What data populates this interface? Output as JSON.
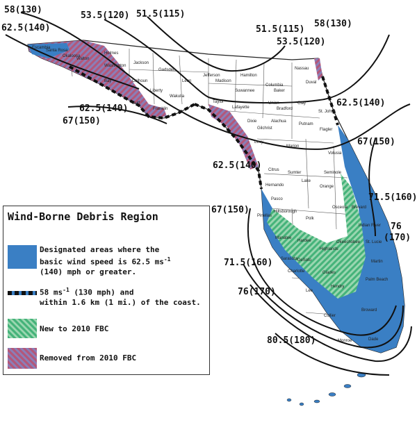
{
  "legend": {
    "title": "Wind-Borne Debris Region",
    "items": [
      {
        "line1": "Designated areas where the",
        "line2a": "basic wind speed is",
        "line2b": "62.5 ms",
        "line2sup": "-1",
        "line3": "(140) mph or greater."
      },
      {
        "line1a": "58 ms",
        "line1sup": "-1",
        "line1b": "(130 mph) and",
        "line2": "within 1.6 km (1 mi.) of the coast."
      },
      {
        "text": "New to 2010 FBC"
      },
      {
        "text": "Removed from 2010 FBC"
      }
    ]
  },
  "contours": [
    {
      "id": "c58-top",
      "label": "58(130)"
    },
    {
      "id": "c535-top",
      "label": "53.5(120)"
    },
    {
      "id": "c515-top",
      "label": "51.5(115)"
    },
    {
      "id": "c625-nw",
      "label": "62.5(140)"
    },
    {
      "id": "c515-ne",
      "label": "51.5(115)"
    },
    {
      "id": "c58-ne",
      "label": "58(130)"
    },
    {
      "id": "c535-ne",
      "label": "53.5(120)"
    },
    {
      "id": "c625-pan",
      "label": "62.5(140)"
    },
    {
      "id": "c67-pan",
      "label": "67(150)"
    },
    {
      "id": "c625-e",
      "label": "62.5(140)"
    },
    {
      "id": "c67-e",
      "label": "67(150)"
    },
    {
      "id": "c625-w",
      "label": "62.5(140)"
    },
    {
      "id": "c715-e",
      "label": "71.5(160)"
    },
    {
      "id": "c67-w",
      "label": "67(150)"
    },
    {
      "id": "c76-e1",
      "label": "76"
    },
    {
      "id": "c76-e2",
      "label": "(170)"
    },
    {
      "id": "c715-w",
      "label": "71.5(160)"
    },
    {
      "id": "c76-w",
      "label": "76(170)"
    },
    {
      "id": "c805",
      "label": "80.5(180)"
    }
  ],
  "counties": [
    "Escambia",
    "Santa Rosa",
    "Okaloosa",
    "Walton",
    "Holmes",
    "Washington",
    "Bay",
    "Jackson",
    "Calhoun",
    "Gulf",
    "Gadsden",
    "Liberty",
    "Franklin",
    "Leon",
    "Wakulla",
    "Jefferson",
    "Madison",
    "Taylor",
    "Hamilton",
    "Suwannee",
    "Lafayette",
    "Dixie",
    "Columbia",
    "Baker",
    "Nassau",
    "Duval",
    "Union",
    "Bradford",
    "Clay",
    "St. Johns",
    "Alachua",
    "Putnam",
    "Flagler",
    "Gilchrist",
    "Levy",
    "Marion",
    "Volusia",
    "Citrus",
    "Lake",
    "Seminole",
    "Hernando",
    "Sumter",
    "Orange",
    "Pasco",
    "Brevard",
    "Pinellas",
    "Hillsborough",
    "Polk",
    "Osceola",
    "Indian River",
    "Manatee",
    "Hardee",
    "Highlands",
    "Okeechobee",
    "St. Lucie",
    "Sarasota",
    "DeSoto",
    "Martin",
    "Charlotte",
    "Glades",
    "Lee",
    "Hendry",
    "Palm Beach",
    "Collier",
    "Broward",
    "Dade",
    "Monroe"
  ]
}
